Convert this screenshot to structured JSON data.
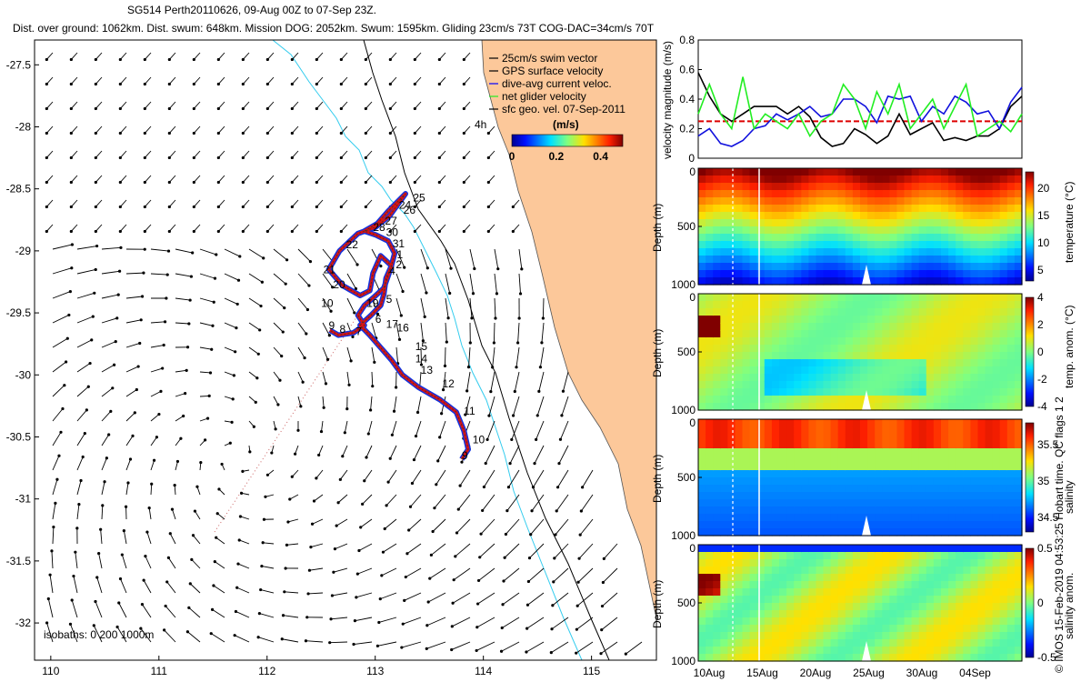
{
  "titles": {
    "line1": "SG514 Perth20110626, 09-Aug 00Z to 07-Sep 23Z.",
    "line2": "Dist. over ground: 1062km. Dist. swum: 648km. Mission DOG: 2052km. Swum: 1595km. Gliding 23cm/s 73T COG-DAC=34cm/s 70T"
  },
  "credit": "© IMOS 15-Feb-2019 04:53:25 Hobart time. QC flags 1 2",
  "colors": {
    "land": "#fcc89a",
    "isobath_shallow": "#33ccee",
    "isobath_deep": "#000000",
    "track_red": "#dd1111",
    "track_blue": "#1133dd",
    "vel_red": "#dd0000",
    "vel_blue": "#1111dd",
    "vel_green": "#22ee22"
  },
  "chart_data": [
    {
      "type": "map",
      "x_ticks": [
        "110",
        "111",
        "112",
        "113",
        "114",
        "115"
      ],
      "y_ticks": [
        "-27.5",
        "-28",
        "-28.5",
        "-29",
        "-29.5",
        "-30",
        "-30.5",
        "-31",
        "-31.5",
        "-32"
      ],
      "xlim": [
        109.85,
        115.6
      ],
      "ylim": [
        -32.3,
        -27.3
      ],
      "legend": [
        {
          "label": "25cm/s swim vector",
          "color": "#000000"
        },
        {
          "label": "GPS surface velocity",
          "color": "#000000"
        },
        {
          "label": "dive-avg current veloc.",
          "color": "#0000ff"
        },
        {
          "label": "net glider velocity",
          "color": "#22ee22"
        },
        {
          "label": "sfc geo. vel. 07-Sep-2011",
          "color": "#000000"
        }
      ],
      "colorbar": {
        "title": "(m/s)",
        "ticks": [
          "0",
          "0.2",
          "0.4"
        ],
        "range": [
          0,
          0.5
        ],
        "note": "4h"
      },
      "isobaths_label": "isobaths: 0   200   1000m",
      "track": [
        [
          113.8,
          -30.68
        ],
        [
          113.86,
          -30.6
        ],
        [
          113.82,
          -30.45
        ],
        [
          113.75,
          -30.3
        ],
        [
          113.6,
          -30.2
        ],
        [
          113.4,
          -30.1
        ],
        [
          113.25,
          -30.0
        ],
        [
          113.15,
          -29.88
        ],
        [
          113.05,
          -29.78
        ],
        [
          112.95,
          -29.68
        ],
        [
          112.86,
          -29.6
        ],
        [
          112.96,
          -29.52
        ],
        [
          113.05,
          -29.44
        ],
        [
          113.08,
          -29.35
        ],
        [
          113.1,
          -29.22
        ],
        [
          113.15,
          -29.12
        ],
        [
          113.05,
          -29.04
        ],
        [
          112.98,
          -29.18
        ],
        [
          112.95,
          -29.32
        ],
        [
          112.86,
          -29.36
        ],
        [
          112.7,
          -29.28
        ],
        [
          112.57,
          -29.15
        ],
        [
          112.67,
          -29.0
        ],
        [
          112.84,
          -28.86
        ],
        [
          113.0,
          -28.81
        ],
        [
          113.13,
          -28.72
        ],
        [
          113.28,
          -28.54
        ],
        [
          113.12,
          -28.68
        ],
        [
          113.02,
          -28.78
        ],
        [
          112.9,
          -28.84
        ],
        [
          113.0,
          -28.87
        ],
        [
          113.12,
          -28.92
        ],
        [
          113.18,
          -29.02
        ],
        [
          113.14,
          -29.15
        ],
        [
          113.08,
          -29.3
        ],
        [
          112.98,
          -29.38
        ],
        [
          112.9,
          -29.44
        ],
        [
          112.84,
          -29.52
        ],
        [
          112.9,
          -29.6
        ],
        [
          112.8,
          -29.66
        ],
        [
          112.66,
          -29.68
        ],
        [
          112.58,
          -29.64
        ]
      ],
      "dive_labels": [
        {
          "t": "9",
          "x": 113.8,
          "y": -30.68
        },
        {
          "t": "10",
          "x": 113.9,
          "y": -30.55
        },
        {
          "t": "11",
          "x": 113.82,
          "y": -30.32
        },
        {
          "t": "12",
          "x": 113.62,
          "y": -30.1
        },
        {
          "t": "13",
          "x": 113.42,
          "y": -29.99
        },
        {
          "t": "14",
          "x": 113.37,
          "y": -29.9
        },
        {
          "t": "15",
          "x": 113.37,
          "y": -29.8
        },
        {
          "t": "16",
          "x": 113.2,
          "y": -29.65
        },
        {
          "t": "17",
          "x": 113.1,
          "y": -29.62
        },
        {
          "t": "6",
          "x": 113.0,
          "y": -29.58
        },
        {
          "t": "7",
          "x": 112.82,
          "y": -29.68
        },
        {
          "t": "8",
          "x": 112.67,
          "y": -29.66
        },
        {
          "t": "9",
          "x": 112.57,
          "y": -29.63
        },
        {
          "t": "10",
          "x": 112.5,
          "y": -29.45
        },
        {
          "t": "19",
          "x": 112.92,
          "y": -29.45
        },
        {
          "t": "5",
          "x": 113.1,
          "y": -29.42
        },
        {
          "t": "20",
          "x": 112.61,
          "y": -29.3
        },
        {
          "t": "21",
          "x": 112.52,
          "y": -29.18
        },
        {
          "t": "4",
          "x": 113.13,
          "y": -29.19
        },
        {
          "t": "2",
          "x": 113.19,
          "y": -29.14
        },
        {
          "t": "1",
          "x": 113.2,
          "y": -29.06
        },
        {
          "t": "22",
          "x": 112.73,
          "y": -28.98
        },
        {
          "t": "31",
          "x": 113.16,
          "y": -28.97
        },
        {
          "t": "30",
          "x": 113.1,
          "y": -28.88
        },
        {
          "t": "28",
          "x": 112.98,
          "y": -28.84
        },
        {
          "t": "27",
          "x": 113.09,
          "y": -28.79
        },
        {
          "t": "26",
          "x": 113.26,
          "y": -28.7
        },
        {
          "t": "24",
          "x": 113.22,
          "y": -28.66
        },
        {
          "t": "25",
          "x": 113.35,
          "y": -28.6
        }
      ]
    },
    {
      "type": "line",
      "ylabel": "velocity magnitude (m/s)",
      "ylim": [
        0,
        0.8
      ],
      "y_ticks": [
        "0",
        "0.2",
        "0.4",
        "0.6",
        "0.8"
      ],
      "xlim": [
        "10Aug",
        "07Sep"
      ],
      "series": [
        {
          "color": "#dd0000",
          "values": [
            0.25,
            0.25,
            0.25,
            0.25,
            0.25,
            0.25,
            0.25,
            0.25,
            0.25,
            0.25,
            0.25,
            0.25,
            0.25,
            0.25,
            0.25,
            0.25,
            0.25,
            0.25,
            0.25,
            0.25,
            0.25,
            0.25,
            0.25,
            0.25,
            0.25,
            0.25,
            0.25,
            0.25,
            0.25,
            0.25
          ]
        },
        {
          "color": "#000000",
          "values": [
            0.58,
            0.42,
            0.3,
            0.25,
            0.3,
            0.35,
            0.35,
            0.35,
            0.3,
            0.35,
            0.28,
            0.14,
            0.08,
            0.1,
            0.2,
            0.16,
            0.1,
            0.15,
            0.3,
            0.16,
            0.2,
            0.24,
            0.12,
            0.14,
            0.12,
            0.15,
            0.15,
            0.2,
            0.35,
            0.42
          ]
        },
        {
          "color": "#1111dd",
          "values": [
            0.15,
            0.2,
            0.1,
            0.08,
            0.12,
            0.2,
            0.22,
            0.3,
            0.26,
            0.3,
            0.35,
            0.28,
            0.3,
            0.4,
            0.4,
            0.35,
            0.24,
            0.42,
            0.4,
            0.42,
            0.25,
            0.35,
            0.3,
            0.42,
            0.38,
            0.3,
            0.32,
            0.2,
            0.38,
            0.48
          ]
        },
        {
          "color": "#22ee22",
          "values": [
            0.3,
            0.5,
            0.3,
            0.2,
            0.55,
            0.2,
            0.3,
            0.25,
            0.2,
            0.3,
            0.15,
            0.25,
            0.3,
            0.5,
            0.4,
            0.2,
            0.45,
            0.3,
            0.5,
            0.2,
            0.3,
            0.4,
            0.2,
            0.35,
            0.5,
            0.15,
            0.2,
            0.25,
            0.18,
            0.3
          ]
        }
      ]
    },
    {
      "type": "heatmap",
      "name": "temperature",
      "ylabel": "Depth (m)",
      "y_ticks": [
        "0",
        "500",
        "1000"
      ],
      "cbar_label": "temperature (°C)",
      "cbar_ticks": [
        "5",
        "10",
        "15",
        "20"
      ],
      "cbar_range": [
        3,
        23
      ],
      "x_ticks": [
        "10Aug",
        "15Aug",
        "20Aug",
        "25Aug",
        "30Aug",
        "04Sep"
      ]
    },
    {
      "type": "heatmap",
      "name": "temp_anomaly",
      "ylabel": "Depth (m)",
      "y_ticks": [
        "0",
        "500",
        "1000"
      ],
      "cbar_label": "temp. anom. (°C)",
      "cbar_ticks": [
        "4",
        "2",
        "0",
        "-2",
        "-4"
      ],
      "cbar_range": [
        -4,
        4
      ],
      "x_ticks": [
        "10Aug",
        "15Aug",
        "20Aug",
        "25Aug",
        "30Aug",
        "04Sep"
      ]
    },
    {
      "type": "heatmap",
      "name": "salinity",
      "ylabel": "Depth (m)",
      "y_ticks": [
        "0",
        "500",
        "1000"
      ],
      "cbar_label": "salinity",
      "cbar_ticks": [
        "35.5",
        "35",
        "34.5"
      ],
      "cbar_range": [
        34.3,
        35.8
      ],
      "x_ticks": [
        "10Aug",
        "15Aug",
        "20Aug",
        "25Aug",
        "30Aug",
        "04Sep"
      ]
    },
    {
      "type": "heatmap",
      "name": "salinity_anomaly",
      "ylabel": "Depth (m)",
      "y_ticks": [
        "0",
        "500",
        "1000"
      ],
      "cbar_label": "salinity anom.",
      "cbar_ticks": [
        "0.5",
        "0",
        "-0.5"
      ],
      "cbar_range": [
        -0.5,
        0.5
      ],
      "x_ticks": [
        "10Aug",
        "15Aug",
        "20Aug",
        "25Aug",
        "30Aug",
        "04Sep"
      ]
    }
  ]
}
